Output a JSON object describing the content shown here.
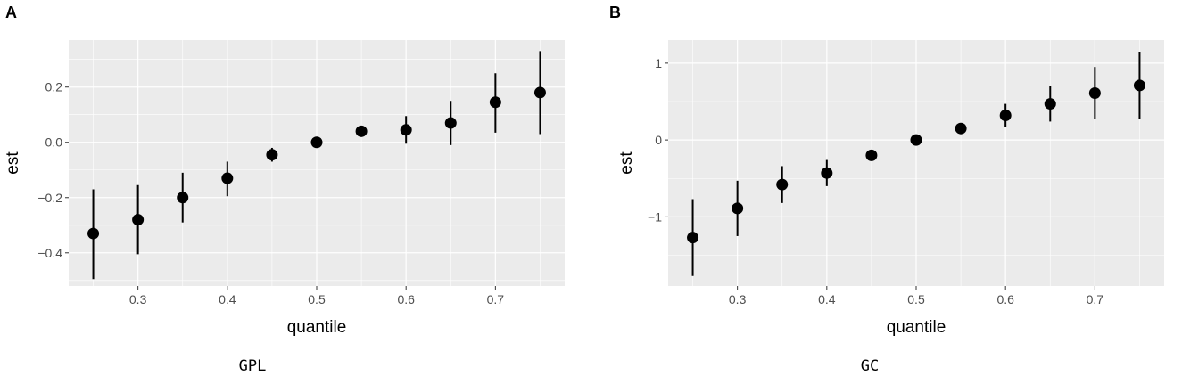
{
  "chart_data": [
    {
      "type": "scatter",
      "panel": "A",
      "caption": "GPL",
      "xlabel": "quantile",
      "ylabel": "est",
      "x": [
        0.25,
        0.3,
        0.35,
        0.4,
        0.45,
        0.5,
        0.55,
        0.6,
        0.65,
        0.7,
        0.75
      ],
      "y": [
        -0.33,
        -0.28,
        -0.2,
        -0.13,
        -0.045,
        0.0,
        0.04,
        0.045,
        0.07,
        0.145,
        0.18
      ],
      "y_low": [
        -0.495,
        -0.405,
        -0.29,
        -0.195,
        -0.07,
        0.0,
        0.04,
        -0.005,
        -0.01,
        0.035,
        0.03
      ],
      "y_high": [
        -0.17,
        -0.155,
        -0.11,
        -0.07,
        -0.02,
        0.0,
        0.04,
        0.095,
        0.15,
        0.25,
        0.33
      ],
      "xticks": [
        0.3,
        0.4,
        0.5,
        0.6,
        0.7
      ],
      "xtick_labels": [
        "0.3",
        "0.4",
        "0.5",
        "0.6",
        "0.7"
      ],
      "yticks": [
        -0.4,
        -0.2,
        0.0,
        0.2
      ],
      "ytick_labels": [
        "-0.4",
        "-0.2",
        "0.0",
        "0.2"
      ],
      "xlim": [
        0.2225,
        0.7775
      ],
      "ylim": [
        -0.52,
        0.37
      ],
      "grid": true
    },
    {
      "type": "scatter",
      "panel": "B",
      "caption": "GC",
      "xlabel": "quantile",
      "ylabel": "est",
      "x": [
        0.25,
        0.3,
        0.35,
        0.4,
        0.45,
        0.5,
        0.55,
        0.6,
        0.65,
        0.7,
        0.75
      ],
      "y": [
        -1.27,
        -0.89,
        -0.58,
        -0.43,
        -0.2,
        0.0,
        0.15,
        0.32,
        0.47,
        0.61,
        0.71
      ],
      "y_low": [
        -1.77,
        -1.25,
        -0.82,
        -0.6,
        -0.2,
        0.0,
        0.15,
        0.17,
        0.24,
        0.27,
        0.28
      ],
      "y_high": [
        -0.77,
        -0.53,
        -0.34,
        -0.26,
        -0.2,
        0.0,
        0.15,
        0.47,
        0.7,
        0.95,
        1.15
      ],
      "xticks": [
        0.3,
        0.4,
        0.5,
        0.6,
        0.7
      ],
      "xtick_labels": [
        "0.3",
        "0.4",
        "0.5",
        "0.6",
        "0.7"
      ],
      "yticks": [
        -1,
        0,
        1
      ],
      "ytick_labels": [
        "-1",
        "0",
        "1"
      ],
      "xlim": [
        0.2225,
        0.7775
      ],
      "ylim": [
        -1.9,
        1.3
      ],
      "grid": true
    }
  ],
  "colors": {
    "panel_background": "#ebebeb",
    "grid_major": "#ffffff",
    "points": "#000000",
    "tick_label": "#4d4d4d"
  }
}
